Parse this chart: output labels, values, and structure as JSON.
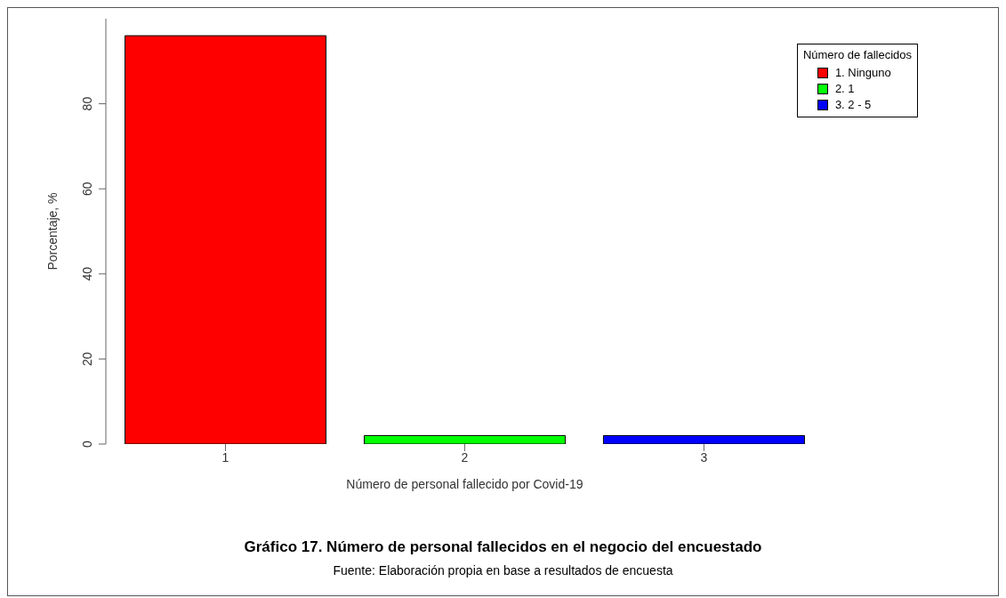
{
  "chart_data": {
    "type": "bar",
    "title": "Gráfico 17. Número de personal fallecidos en el negocio del encuestado",
    "xlabel": "Número de personal fallecido por Covid-19",
    "ylabel": "Porcentaje, %",
    "legend_title": "Número de fallecidos",
    "annotations": [
      "Fuente: Elaboración propia en base a resultados de encuesta"
    ],
    "categories": [
      "1",
      "2",
      "3"
    ],
    "stacked": true,
    "series": [
      {
        "name": "1. Ninguno",
        "color": "#ff0000",
        "values": [
          96,
          null,
          null
        ]
      },
      {
        "name": "2. 1",
        "color": "#00ff00",
        "values": [
          null,
          2,
          null
        ]
      },
      {
        "name": "3. 2 - 5",
        "color": "#0000ff",
        "values": [
          null,
          null,
          2
        ]
      }
    ],
    "ylim": [
      0,
      100
    ],
    "yticks": [
      0,
      20,
      40,
      60,
      80
    ],
    "grid": false,
    "legend": "top right"
  }
}
